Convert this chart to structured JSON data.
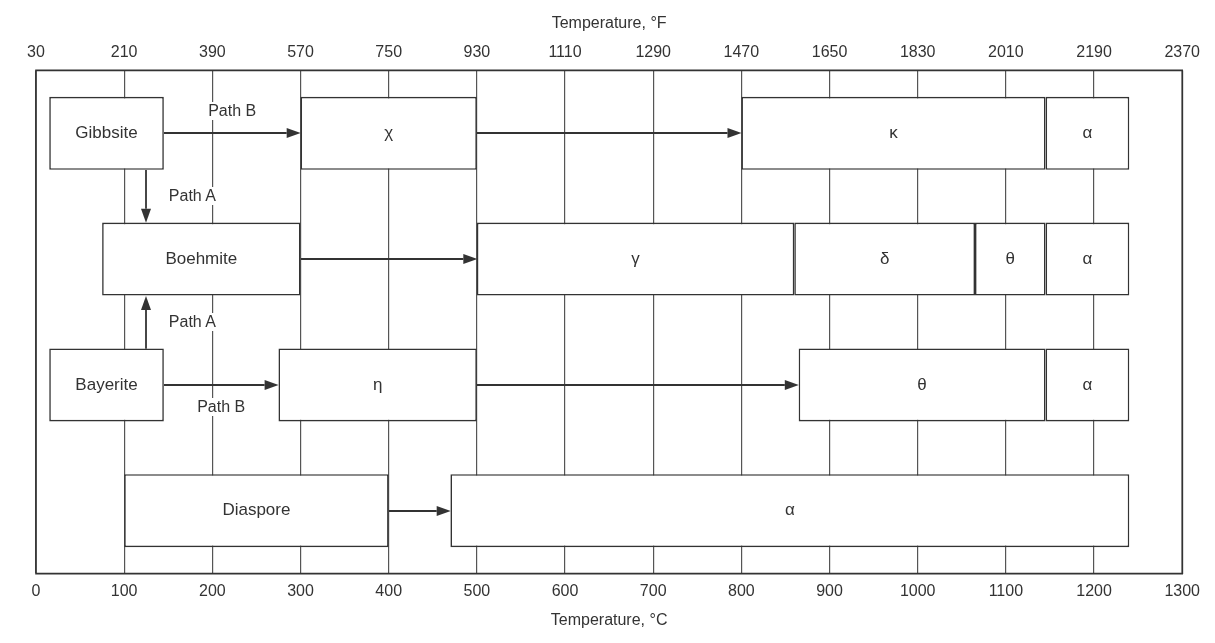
{
  "chart_data": {
    "type": "bar",
    "orientation": "horizontal",
    "xlabel": "Temperature, °C",
    "x2label": "Temperature, °F",
    "categories": [
      null,
      null,
      null,
      null
    ],
    "xlim": [
      0,
      1300
    ],
    "xticks": [
      0,
      100,
      200,
      300,
      400,
      500,
      600,
      700,
      800,
      900,
      1000,
      1100,
      1200,
      1300
    ],
    "x2lim": [
      30,
      2370
    ],
    "x2ticks": [
      30,
      210,
      390,
      570,
      750,
      930,
      1110,
      1290,
      1470,
      1650,
      1830,
      2010,
      2190,
      2370
    ],
    "series": [
      {
        "color": "#ffffff",
        "base": [
          15,
          75,
          15,
          100
        ],
        "values": [
          130,
          225,
          130,
          300
        ],
        "value_labels": [
          "Gibbsite",
          "Boehmite",
          "Bayerite",
          "Diaspore"
        ]
      },
      {
        "color": "#ffffff",
        "base": [
          300,
          500,
          275,
          470
        ],
        "values": [
          200,
          360,
          225,
          770
        ],
        "value_labels": [
          "χ",
          "γ",
          "η",
          "α"
        ]
      },
      {
        "color": "#ffffff",
        "base": [
          800,
          860,
          865,
          null
        ],
        "values": [
          345,
          205,
          280,
          null
        ],
        "value_labels": [
          "κ",
          "δ",
          "θ",
          null
        ]
      },
      {
        "color": "#ffffff",
        "base": [
          null,
          1065,
          null,
          null
        ],
        "values": [
          null,
          80,
          null,
          null
        ],
        "value_labels": [
          null,
          "θ",
          null,
          null
        ]
      },
      {
        "color": "#ffffff",
        "base": [
          1145,
          1145,
          1145,
          null
        ],
        "values": [
          95,
          95,
          95,
          null
        ],
        "value_labels": [
          "α",
          "α",
          "α",
          null
        ]
      }
    ],
    "annotations": [
      "Path B",
      "Path A",
      "Path A",
      "Path B"
    ],
    "grid": "x",
    "legend": false,
    "tick_labels": "x"
  }
}
